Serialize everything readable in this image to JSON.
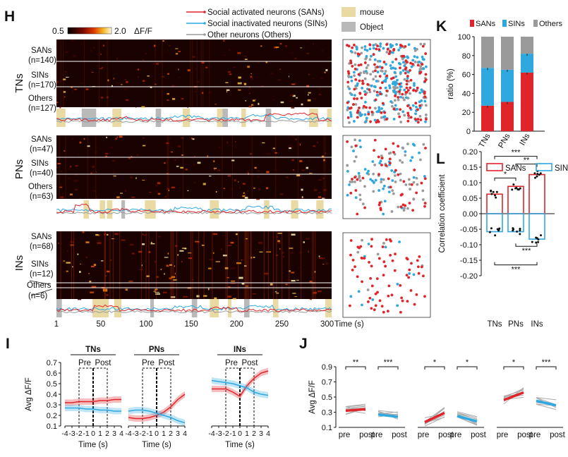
{
  "panel_letters": {
    "H": "H",
    "I": "I",
    "J": "J",
    "K": "K",
    "L": "L"
  },
  "colors": {
    "san": "#e0252a",
    "sin": "#2fa8e0",
    "other": "#9a9a9a",
    "mouse": "#e9d9a3",
    "object": "#b9b9b9"
  },
  "colorbar": {
    "min": "0.5",
    "max": "2.0",
    "unit": "ΔF/F"
  },
  "legend_h": {
    "san": "Social activated neurons (SANs)",
    "sin": "Social inactivated neurons (SINs)",
    "other": "Other neurons (Others)",
    "mouse": "mouse",
    "object": "Object"
  },
  "groups": [
    {
      "name": "TNs",
      "rows": [
        {
          "label": "SANs",
          "n": "(n=140)"
        },
        {
          "label": "SINs",
          "n": "(n=170)"
        },
        {
          "label": "Others",
          "n": "(n=127)"
        }
      ]
    },
    {
      "name": "PNs",
      "rows": [
        {
          "label": "SANs",
          "n": "(n=47)"
        },
        {
          "label": "SINs",
          "n": "(n=40)"
        },
        {
          "label": "Others",
          "n": "(n=63)"
        }
      ]
    },
    {
      "name": "INs",
      "rows": [
        {
          "label": "SANs",
          "n": "(n=68)"
        },
        {
          "label": "SINs",
          "n": "(n=12)"
        },
        {
          "label": "Others",
          "n": "(n=6)"
        }
      ]
    }
  ],
  "time_axis": {
    "ticks": [
      "1",
      "50",
      "100",
      "150",
      "200",
      "250",
      "300"
    ],
    "label": "Time (s)"
  },
  "chart_data": [
    {
      "panel": "K",
      "type": "bar",
      "stacked": true,
      "categories": [
        "TNs",
        "PNs",
        "INs"
      ],
      "ylabel": "ratio (%)",
      "ylim": [
        0,
        100
      ],
      "yticks": [
        "0",
        "20",
        "40",
        "60",
        "80",
        "100"
      ],
      "legend": [
        "SANs",
        "SINs",
        "Others"
      ],
      "series": [
        {
          "name": "SANs",
          "values": [
            27,
            31,
            62
          ]
        },
        {
          "name": "SINs",
          "values": [
            40,
            34,
            20
          ]
        },
        {
          "name": "Others",
          "values": [
            33,
            35,
            18
          ]
        }
      ]
    },
    {
      "panel": "L",
      "type": "bar",
      "categories": [
        "TNs",
        "PNs",
        "INs"
      ],
      "ylabel": "Correlation coefficient",
      "ylim": [
        -0.2,
        0.2
      ],
      "yticks": [
        "0.20",
        "0.15",
        "0.10",
        "0.05",
        "0.00",
        "-0.05",
        "-0.10",
        "-0.15",
        "-0.20"
      ],
      "legend": [
        "SANs",
        "SINs"
      ],
      "series": [
        {
          "name": "SANs",
          "values": [
            0.063,
            0.088,
            0.126
          ]
        },
        {
          "name": "SINs",
          "values": [
            -0.058,
            -0.058,
            -0.082
          ]
        }
      ],
      "significance": [
        "*",
        "**",
        "***",
        "***",
        "***"
      ]
    },
    {
      "panel": "I",
      "type": "line",
      "titles": [
        "TNs",
        "PNs",
        "INs"
      ],
      "pre_post": [
        "Pre",
        "Post"
      ],
      "ylabel": "Avg ΔF/F",
      "xlabel": "Time (s)",
      "yticks": [
        "0.1",
        "0.2",
        "0.3",
        "0.4",
        "0.5",
        "0.6",
        "0.7"
      ],
      "xticks": [
        "-4",
        "-3",
        "-2",
        "-1",
        "0",
        "1",
        "2",
        "3",
        "4"
      ],
      "ylim": [
        0.1,
        0.7
      ],
      "xlim": [
        -4,
        4
      ],
      "x": [
        -4,
        -3,
        -2,
        -1,
        0,
        1,
        2,
        3,
        4
      ],
      "series": [
        {
          "name": "SANs",
          "group": "TNs",
          "values": [
            0.32,
            0.32,
            0.33,
            0.33,
            0.33,
            0.34,
            0.34,
            0.35,
            0.35
          ]
        },
        {
          "name": "SINs",
          "group": "TNs",
          "values": [
            0.27,
            0.27,
            0.27,
            0.26,
            0.26,
            0.25,
            0.25,
            0.24,
            0.24
          ]
        },
        {
          "name": "SANs",
          "group": "PNs",
          "values": [
            0.18,
            0.17,
            0.17,
            0.18,
            0.2,
            0.23,
            0.28,
            0.35,
            0.4
          ]
        },
        {
          "name": "SINs",
          "group": "PNs",
          "values": [
            0.24,
            0.25,
            0.25,
            0.24,
            0.22,
            0.2,
            0.18,
            0.15,
            0.13
          ]
        },
        {
          "name": "SANs",
          "group": "INs",
          "values": [
            0.45,
            0.45,
            0.45,
            0.42,
            0.38,
            0.48,
            0.55,
            0.6,
            0.62
          ]
        },
        {
          "name": "SINs",
          "group": "INs",
          "values": [
            0.53,
            0.52,
            0.51,
            0.5,
            0.48,
            0.46,
            0.42,
            0.4,
            0.39
          ]
        }
      ]
    },
    {
      "panel": "J",
      "type": "line",
      "ylabel": "Avg ΔF/F",
      "yticks": [
        "0.1",
        "0.3",
        "0.5",
        "0.7",
        "0.9"
      ],
      "ylim": [
        0.1,
        0.9
      ],
      "xticks": [
        "pre",
        "post"
      ],
      "groups": [
        {
          "sig": [
            "**",
            "***"
          ],
          "san": [
            0.32,
            0.34
          ],
          "sin": [
            0.27,
            0.24
          ]
        },
        {
          "sig": [
            "*",
            "*"
          ],
          "san": [
            0.17,
            0.29
          ],
          "sin": [
            0.25,
            0.18
          ]
        },
        {
          "sig": [
            "*",
            "***"
          ],
          "san": [
            0.46,
            0.56
          ],
          "sin": [
            0.45,
            0.39
          ]
        }
      ]
    }
  ]
}
